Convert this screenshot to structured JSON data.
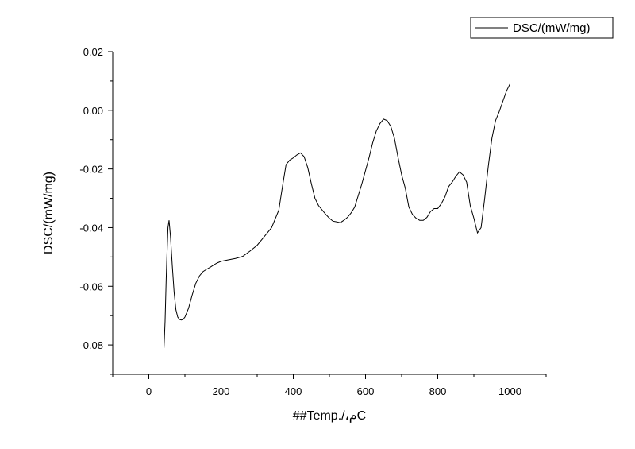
{
  "chart_data": {
    "type": "line",
    "title": "",
    "xlabel": "##Temp./،مC",
    "ylabel": "DSC/(mW/mg)",
    "xlim": [
      -100,
      1100
    ],
    "ylim": [
      -0.09,
      0.02
    ],
    "x_ticks": [
      0,
      200,
      400,
      600,
      800,
      1000
    ],
    "y_ticks": [
      -0.08,
      -0.06,
      -0.04,
      -0.02,
      0.0,
      0.02
    ],
    "x_tick_labels": [
      "0",
      "200",
      "400",
      "600",
      "800",
      "1000"
    ],
    "y_tick_labels": [
      "-0.08",
      "-0.06",
      "-0.04",
      "-0.02",
      "0.00",
      "0.02"
    ],
    "grid": false,
    "legend_position": "top-right",
    "line_color": "#000000",
    "series": [
      {
        "name": "DSC/(mW/mg)",
        "x": [
          42,
          45,
          48,
          50,
          53,
          56,
          60,
          65,
          70,
          75,
          80,
          85,
          90,
          95,
          100,
          110,
          120,
          130,
          140,
          150,
          160,
          170,
          180,
          190,
          200,
          220,
          240,
          260,
          280,
          300,
          320,
          340,
          360,
          370,
          380,
          390,
          400,
          410,
          420,
          430,
          440,
          450,
          460,
          470,
          480,
          490,
          500,
          510,
          520,
          530,
          540,
          550,
          560,
          570,
          580,
          590,
          600,
          610,
          620,
          630,
          640,
          650,
          660,
          670,
          680,
          690,
          700,
          710,
          720,
          730,
          740,
          750,
          760,
          770,
          780,
          790,
          800,
          810,
          820,
          830,
          840,
          850,
          860,
          870,
          880,
          890,
          900,
          910,
          920,
          930,
          940,
          950,
          960,
          970,
          980,
          990,
          1000
        ],
        "y": [
          -0.081,
          -0.072,
          -0.058,
          -0.05,
          -0.04,
          -0.0375,
          -0.043,
          -0.053,
          -0.062,
          -0.068,
          -0.0705,
          -0.0713,
          -0.0715,
          -0.0713,
          -0.0705,
          -0.0675,
          -0.063,
          -0.059,
          -0.0565,
          -0.055,
          -0.0542,
          -0.0535,
          -0.0527,
          -0.052,
          -0.0515,
          -0.051,
          -0.0505,
          -0.0498,
          -0.048,
          -0.046,
          -0.043,
          -0.04,
          -0.034,
          -0.026,
          -0.0185,
          -0.017,
          -0.0162,
          -0.0152,
          -0.0145,
          -0.0158,
          -0.0195,
          -0.025,
          -0.03,
          -0.0325,
          -0.034,
          -0.0355,
          -0.0368,
          -0.0378,
          -0.038,
          -0.0383,
          -0.0375,
          -0.0365,
          -0.035,
          -0.033,
          -0.029,
          -0.025,
          -0.0205,
          -0.016,
          -0.011,
          -0.007,
          -0.0045,
          -0.003,
          -0.0035,
          -0.0055,
          -0.0095,
          -0.016,
          -0.022,
          -0.0265,
          -0.033,
          -0.0355,
          -0.0368,
          -0.0375,
          -0.0375,
          -0.0365,
          -0.0345,
          -0.0335,
          -0.0335,
          -0.0318,
          -0.0295,
          -0.026,
          -0.0245,
          -0.0225,
          -0.021,
          -0.022,
          -0.0245,
          -0.0325,
          -0.0368,
          -0.0418,
          -0.04,
          -0.03,
          -0.019,
          -0.0095,
          -0.0035,
          -0.0005,
          0.003,
          0.0065,
          0.009
        ]
      }
    ]
  }
}
